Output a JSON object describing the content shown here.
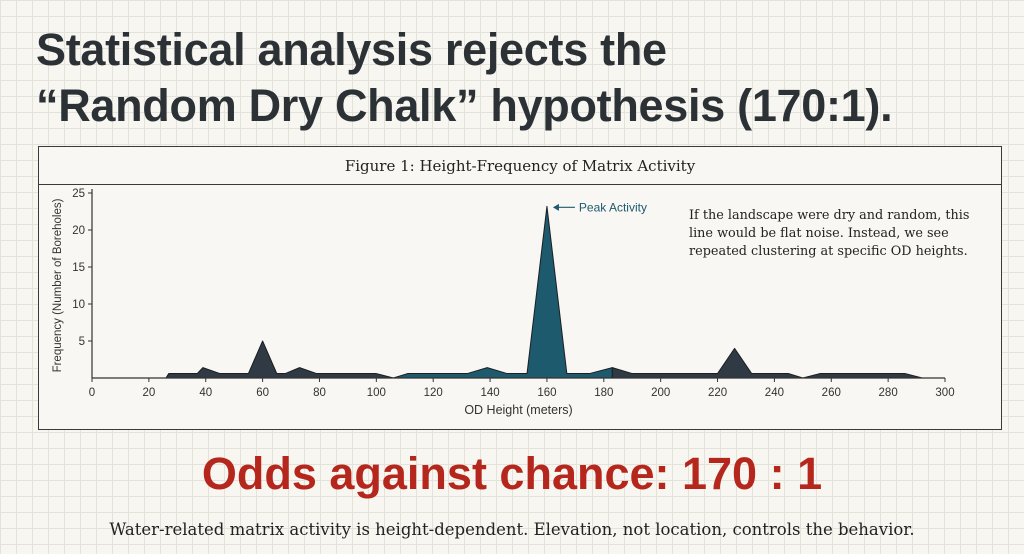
{
  "headline": {
    "line1": "Statistical analysis rejects the",
    "line2": "“Random Dry Chalk” hypothesis (170:1)."
  },
  "figure": {
    "caption": "Figure 1: Height-Frequency of Matrix Activity",
    "annotation": "If the landscape were dry and random, this line would be flat noise. Instead, we see repeated clustering at specific OD heights."
  },
  "chart_data": {
    "type": "area",
    "title": "Figure 1: Height-Frequency of Matrix Activity",
    "xlabel": "OD Height (meters)",
    "ylabel": "Frequency (Number of Boreholes)",
    "xlim": [
      0,
      300
    ],
    "ylim": [
      0,
      25
    ],
    "xticks": [
      0,
      20,
      40,
      60,
      80,
      100,
      120,
      140,
      160,
      180,
      200,
      220,
      240,
      260,
      280,
      300
    ],
    "yticks": [
      5,
      10,
      15,
      20,
      25
    ],
    "peak_label": "Peak Activity",
    "peak_x": 160,
    "series": [
      {
        "name": "Frequency",
        "colors": {
          "default": "#2f3a44",
          "highlight": "#1d5a6e"
        },
        "points": [
          [
            26,
            0
          ],
          [
            27,
            0.6
          ],
          [
            37,
            0.6
          ],
          [
            39,
            1.4
          ],
          [
            45,
            0.6
          ],
          [
            55,
            0.6
          ],
          [
            60,
            5
          ],
          [
            65,
            0.6
          ],
          [
            68,
            0.6
          ],
          [
            73,
            1.4
          ],
          [
            79,
            0.6
          ],
          [
            100,
            0.6
          ],
          [
            106,
            0
          ],
          [
            111,
            0.6
          ],
          [
            132,
            0.6
          ],
          [
            139,
            1.4
          ],
          [
            146,
            0.6
          ],
          [
            153,
            0.6
          ],
          [
            160,
            23.2
          ],
          [
            167,
            0.6
          ],
          [
            175,
            0.6
          ],
          [
            183,
            1.4
          ],
          [
            190,
            0.6
          ],
          [
            220,
            0.6
          ],
          [
            226,
            4
          ],
          [
            232,
            0.6
          ],
          [
            245,
            0.6
          ],
          [
            250,
            0
          ],
          [
            256,
            0.6
          ],
          [
            286,
            0.6
          ],
          [
            292,
            0
          ]
        ],
        "highlight_ranges": [
          [
            106,
            175
          ]
        ]
      }
    ]
  },
  "odds": "Odds against chance: 170 : 1",
  "footer": "Water-related matrix activity is height-dependent. Elevation, not location, controls the behavior."
}
